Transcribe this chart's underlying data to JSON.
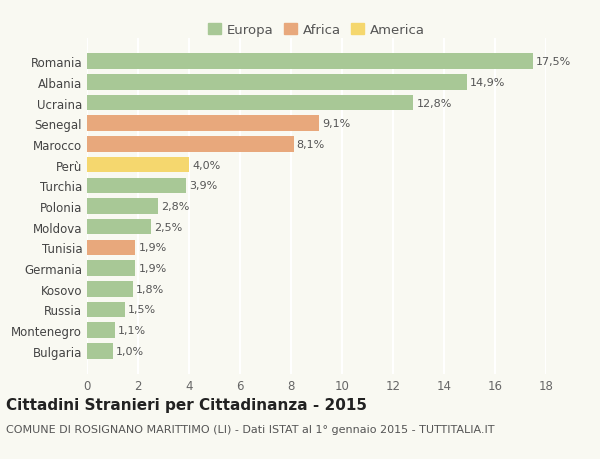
{
  "categories": [
    "Romania",
    "Albania",
    "Ucraina",
    "Senegal",
    "Marocco",
    "Perù",
    "Turchia",
    "Polonia",
    "Moldova",
    "Tunisia",
    "Germania",
    "Kosovo",
    "Russia",
    "Montenegro",
    "Bulgaria"
  ],
  "values": [
    17.5,
    14.9,
    12.8,
    9.1,
    8.1,
    4.0,
    3.9,
    2.8,
    2.5,
    1.9,
    1.9,
    1.8,
    1.5,
    1.1,
    1.0
  ],
  "labels": [
    "17,5%",
    "14,9%",
    "12,8%",
    "9,1%",
    "8,1%",
    "4,0%",
    "3,9%",
    "2,8%",
    "2,5%",
    "1,9%",
    "1,9%",
    "1,8%",
    "1,5%",
    "1,1%",
    "1,0%"
  ],
  "continents": [
    "Europa",
    "Europa",
    "Europa",
    "Africa",
    "Africa",
    "America",
    "Europa",
    "Europa",
    "Europa",
    "Africa",
    "Europa",
    "Europa",
    "Europa",
    "Europa",
    "Europa"
  ],
  "colors": {
    "Europa": "#a8c896",
    "Africa": "#e8a87c",
    "America": "#f5d76e"
  },
  "legend_items": [
    "Europa",
    "Africa",
    "America"
  ],
  "legend_colors": [
    "#a8c896",
    "#e8a87c",
    "#f5d76e"
  ],
  "title": "Cittadini Stranieri per Cittadinanza - 2015",
  "subtitle": "COMUNE DI ROSIGNANO MARITTIMO (LI) - Dati ISTAT al 1° gennaio 2015 - TUTTITALIA.IT",
  "xlim": [
    0,
    18
  ],
  "xticks": [
    0,
    2,
    4,
    6,
    8,
    10,
    12,
    14,
    16,
    18
  ],
  "background_color": "#f9f9f2",
  "grid_color": "#ffffff",
  "bar_height": 0.75,
  "title_fontsize": 11,
  "subtitle_fontsize": 8,
  "label_fontsize": 8,
  "tick_fontsize": 8.5,
  "legend_fontsize": 9.5
}
